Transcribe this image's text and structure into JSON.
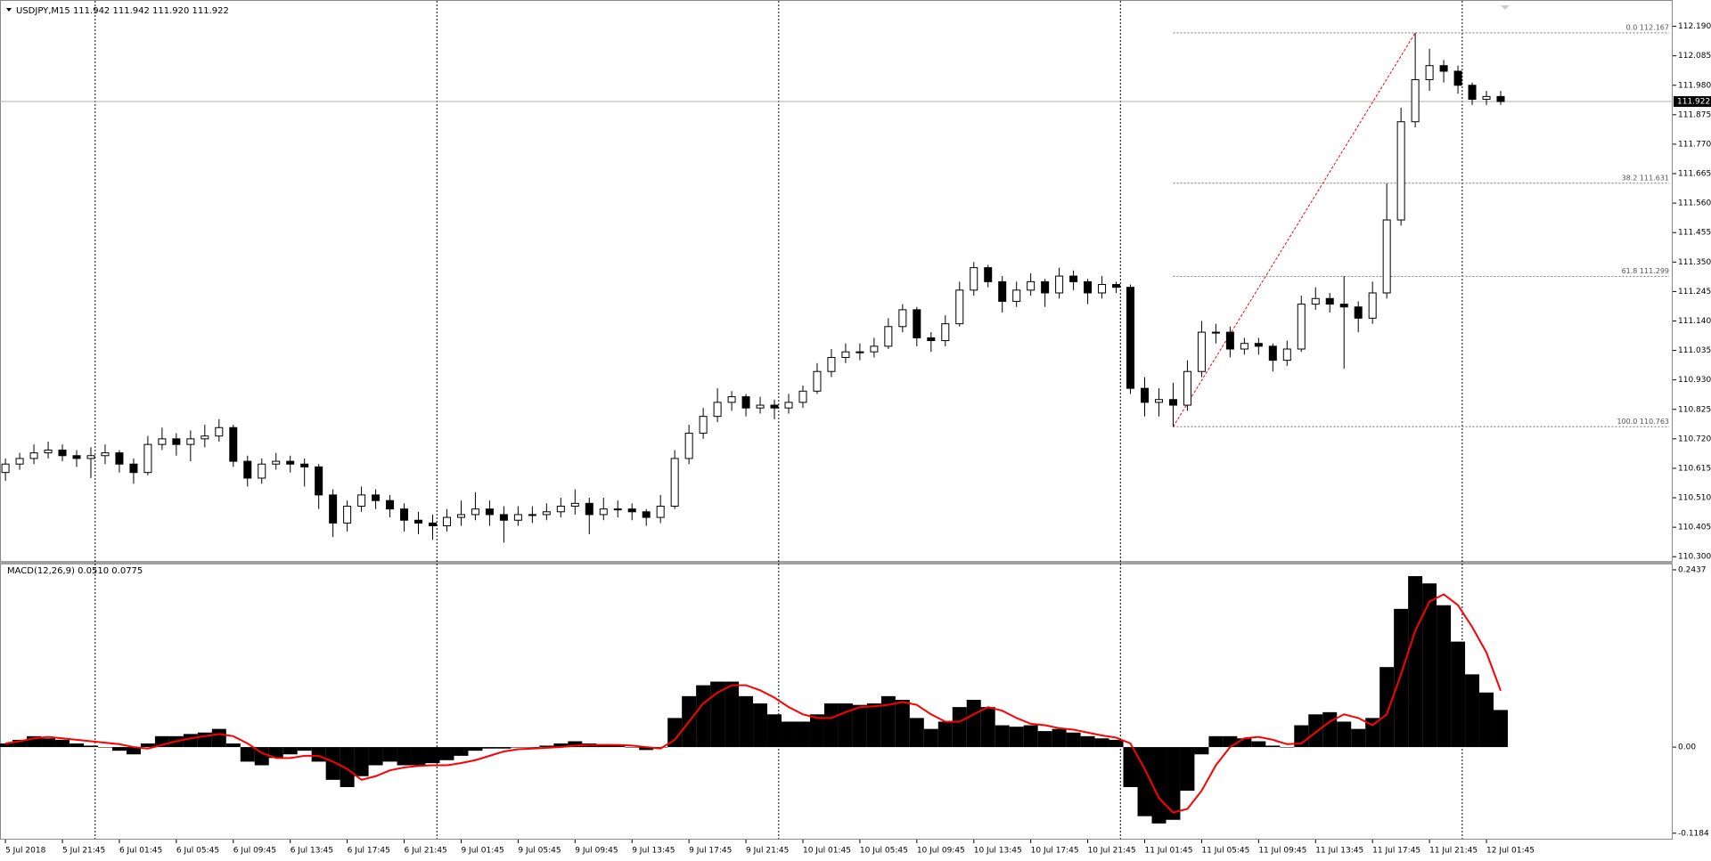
{
  "chart_data": {
    "type": "candlestick",
    "title": "USDJPY,M15  111.942 111.942 111.920 111.922",
    "ylim": [
      110.288,
      112.268
    ],
    "yticks": [
      {
        "value": 112.19,
        "label": "112.190"
      },
      112.085,
      {
        "value": 111.98,
        "label": "111.980"
      },
      111.875,
      {
        "value": 111.77,
        "label": "111.770"
      },
      111.665,
      {
        "value": 111.56,
        "label": "111.560"
      },
      111.455,
      {
        "value": 111.35,
        "label": "111.350"
      },
      111.245,
      {
        "value": 111.14,
        "label": "111.140"
      },
      111.035,
      {
        "value": 110.93,
        "label": "110.930"
      },
      110.825,
      {
        "value": 110.72,
        "label": "110.720"
      },
      110.615,
      {
        "value": 110.51,
        "label": "110.510"
      },
      110.405,
      {
        "value": 110.3,
        "label": "110.300"
      }
    ],
    "bid": 111.922,
    "x_labels": [
      "5 Jul 2018",
      "5 Jul 21:45",
      "6 Jul 01:45",
      "6 Jul 05:45",
      "6 Jul 09:45",
      "6 Jul 13:45",
      "6 Jul 17:45",
      "6 Jul 21:45",
      "9 Jul 01:45",
      "9 Jul 05:45",
      "9 Jul 09:45",
      "9 Jul 13:45",
      "9 Jul 17:45",
      "9 Jul 21:45",
      "10 Jul 01:45",
      "10 Jul 05:45",
      "10 Jul 09:45",
      "10 Jul 13:45",
      "10 Jul 17:45",
      "10 Jul 21:45",
      "11 Jul 01:45",
      "11 Jul 05:45",
      "11 Jul 09:45",
      "11 Jul 13:45",
      "11 Jul 17:45",
      "11 Jul 21:45",
      "12 Jul 01:45"
    ],
    "fib_levels": [
      {
        "label": "0.0 112.167",
        "value": 112.167
      },
      {
        "label": "38.2 111.631",
        "value": 111.631
      },
      {
        "label": "61.8 111.299",
        "value": 111.299
      },
      {
        "label": "100.0 110.763",
        "value": 110.763
      }
    ],
    "candles": [
      [
        110.6,
        110.65,
        110.57,
        110.63
      ],
      [
        110.63,
        110.67,
        110.61,
        110.65
      ],
      [
        110.65,
        110.7,
        110.63,
        110.67
      ],
      [
        110.67,
        110.71,
        110.65,
        110.68
      ],
      [
        110.68,
        110.7,
        110.64,
        110.66
      ],
      [
        110.66,
        110.68,
        110.62,
        110.65
      ],
      [
        110.65,
        110.69,
        110.58,
        110.66
      ],
      [
        110.66,
        110.7,
        110.63,
        110.67
      ],
      [
        110.67,
        110.68,
        110.6,
        110.63
      ],
      [
        110.63,
        110.65,
        110.56,
        110.6
      ],
      [
        110.6,
        110.73,
        110.59,
        110.7
      ],
      [
        110.7,
        110.76,
        110.68,
        110.72
      ],
      [
        110.72,
        110.74,
        110.66,
        110.7
      ],
      [
        110.7,
        110.75,
        110.64,
        110.72
      ],
      [
        110.72,
        110.77,
        110.69,
        110.73
      ],
      [
        110.73,
        110.79,
        110.71,
        110.76
      ],
      [
        110.76,
        110.77,
        110.62,
        110.64
      ],
      [
        110.64,
        110.66,
        110.55,
        110.58
      ],
      [
        110.58,
        110.65,
        110.56,
        110.63
      ],
      [
        110.63,
        110.67,
        110.61,
        110.64
      ],
      [
        110.64,
        110.66,
        110.6,
        110.63
      ],
      [
        110.63,
        110.65,
        110.55,
        110.62
      ],
      [
        110.62,
        110.63,
        110.47,
        110.52
      ],
      [
        110.52,
        110.54,
        110.37,
        110.42
      ],
      [
        110.42,
        110.5,
        110.39,
        110.48
      ],
      [
        110.48,
        110.55,
        110.46,
        110.52
      ],
      [
        110.52,
        110.54,
        110.47,
        110.5
      ],
      [
        110.5,
        110.52,
        110.44,
        110.47
      ],
      [
        110.47,
        110.49,
        110.39,
        110.43
      ],
      [
        110.43,
        110.46,
        110.38,
        110.42
      ],
      [
        110.42,
        110.45,
        110.36,
        110.41
      ],
      [
        110.41,
        110.47,
        110.39,
        110.44
      ],
      [
        110.44,
        110.5,
        110.41,
        110.45
      ],
      [
        110.45,
        110.53,
        110.43,
        110.47
      ],
      [
        110.47,
        110.5,
        110.41,
        110.45
      ],
      [
        110.45,
        110.48,
        110.35,
        110.43
      ],
      [
        110.43,
        110.48,
        110.41,
        110.45
      ],
      [
        110.45,
        110.48,
        110.42,
        110.45
      ],
      [
        110.45,
        110.49,
        110.43,
        110.46
      ],
      [
        110.46,
        110.51,
        110.44,
        110.48
      ],
      [
        110.48,
        110.54,
        110.45,
        110.49
      ],
      [
        110.49,
        110.51,
        110.38,
        110.45
      ],
      [
        110.45,
        110.51,
        110.43,
        110.47
      ],
      [
        110.47,
        110.5,
        110.44,
        110.47
      ],
      [
        110.47,
        110.49,
        110.43,
        110.46
      ],
      [
        110.46,
        110.47,
        110.41,
        110.44
      ],
      [
        110.44,
        110.52,
        110.42,
        110.48
      ],
      [
        110.48,
        110.68,
        110.47,
        110.65
      ],
      [
        110.65,
        110.77,
        110.63,
        110.74
      ],
      [
        110.74,
        110.83,
        110.72,
        110.8
      ],
      [
        110.8,
        110.9,
        110.78,
        110.85
      ],
      [
        110.85,
        110.89,
        110.82,
        110.87
      ],
      [
        110.87,
        110.88,
        110.8,
        110.83
      ],
      [
        110.83,
        110.87,
        110.81,
        110.84
      ],
      [
        110.84,
        110.86,
        110.79,
        110.83
      ],
      [
        110.83,
        110.88,
        110.81,
        110.85
      ],
      [
        110.85,
        110.91,
        110.83,
        110.89
      ],
      [
        110.89,
        110.99,
        110.88,
        110.96
      ],
      [
        110.96,
        111.04,
        110.94,
        111.01
      ],
      [
        111.01,
        111.06,
        110.99,
        111.03
      ],
      [
        111.03,
        111.06,
        111.0,
        111.03
      ],
      [
        111.03,
        111.08,
        111.01,
        111.05
      ],
      [
        111.05,
        111.15,
        111.04,
        111.12
      ],
      [
        111.12,
        111.2,
        111.1,
        111.18
      ],
      [
        111.18,
        111.19,
        111.05,
        111.08
      ],
      [
        111.08,
        111.1,
        111.03,
        111.07
      ],
      [
        111.07,
        111.16,
        111.05,
        111.13
      ],
      [
        111.13,
        111.28,
        111.12,
        111.25
      ],
      [
        111.25,
        111.35,
        111.23,
        111.33
      ],
      [
        111.33,
        111.34,
        111.26,
        111.28
      ],
      [
        111.28,
        111.3,
        111.17,
        111.21
      ],
      [
        111.21,
        111.28,
        111.19,
        111.25
      ],
      [
        111.25,
        111.31,
        111.23,
        111.28
      ],
      [
        111.28,
        111.29,
        111.19,
        111.24
      ],
      [
        111.24,
        111.33,
        111.22,
        111.3
      ],
      [
        111.3,
        111.32,
        111.25,
        111.28
      ],
      [
        111.28,
        111.29,
        111.2,
        111.24
      ],
      [
        111.24,
        111.3,
        111.22,
        111.27
      ],
      [
        111.27,
        111.28,
        111.24,
        111.26
      ],
      [
        111.26,
        111.27,
        110.88,
        110.9
      ],
      [
        110.9,
        110.94,
        110.8,
        110.85
      ],
      [
        110.85,
        110.9,
        110.8,
        110.86
      ],
      [
        110.86,
        110.92,
        110.763,
        110.84
      ],
      [
        110.84,
        111.0,
        110.82,
        110.96
      ],
      [
        110.96,
        111.14,
        110.94,
        111.1
      ],
      [
        111.1,
        111.13,
        111.06,
        111.1
      ],
      [
        111.1,
        111.12,
        111.01,
        111.04
      ],
      [
        111.04,
        111.08,
        111.02,
        111.06
      ],
      [
        111.06,
        111.08,
        111.02,
        111.05
      ],
      [
        111.05,
        111.06,
        110.96,
        111.0
      ],
      [
        111.0,
        111.07,
        110.98,
        111.04
      ],
      [
        111.04,
        111.23,
        111.03,
        111.2
      ],
      [
        111.2,
        111.26,
        111.18,
        111.22
      ],
      [
        111.22,
        111.24,
        111.17,
        111.2
      ],
      [
        111.2,
        111.3,
        110.97,
        111.19
      ],
      [
        111.19,
        111.21,
        111.1,
        111.15
      ],
      [
        111.15,
        111.28,
        111.13,
        111.24
      ],
      [
        111.24,
        111.63,
        111.22,
        111.5
      ],
      [
        111.5,
        111.9,
        111.48,
        111.85
      ],
      [
        111.85,
        112.167,
        111.83,
        112.0
      ],
      [
        112.0,
        112.11,
        111.96,
        112.05
      ],
      [
        112.05,
        112.07,
        111.99,
        112.03
      ],
      [
        112.03,
        112.05,
        111.95,
        111.98
      ],
      [
        111.98,
        111.99,
        111.91,
        111.93
      ],
      [
        111.93,
        111.96,
        111.91,
        111.94
      ],
      [
        111.94,
        111.96,
        111.91,
        111.922
      ]
    ],
    "macd": {
      "title": "MACD(12,26,9) 0.0510 0.0775",
      "ylim": [
        -0.126,
        0.251
      ],
      "yticks": [
        0.2437,
        {
          "value": 0,
          "label": "0.00"
        },
        -0.1184
      ],
      "color": "#ff0000",
      "histogram": [
        0.005,
        0.01,
        0.015,
        0.012,
        0.01,
        0.005,
        0.002,
        0.0,
        -0.005,
        -0.01,
        0.005,
        0.015,
        0.015,
        0.018,
        0.02,
        0.025,
        0.005,
        -0.02,
        -0.025,
        -0.015,
        -0.01,
        -0.005,
        -0.02,
        -0.045,
        -0.055,
        -0.04,
        -0.025,
        -0.02,
        -0.025,
        -0.025,
        -0.022,
        -0.018,
        -0.012,
        -0.005,
        -0.002,
        -0.002,
        0.0,
        0.0,
        0.002,
        0.005,
        0.008,
        0.005,
        0.004,
        0.003,
        0.0,
        -0.004,
        0.0,
        0.04,
        0.07,
        0.085,
        0.09,
        0.09,
        0.07,
        0.06,
        0.045,
        0.035,
        0.035,
        0.045,
        0.06,
        0.06,
        0.058,
        0.06,
        0.07,
        0.065,
        0.04,
        0.025,
        0.035,
        0.055,
        0.065,
        0.055,
        0.03,
        0.028,
        0.03,
        0.022,
        0.025,
        0.02,
        0.015,
        0.012,
        0.01,
        -0.055,
        -0.095,
        -0.105,
        -0.1,
        -0.06,
        -0.01,
        0.015,
        0.015,
        0.012,
        0.008,
        0.002,
        0.0,
        0.03,
        0.045,
        0.048,
        0.035,
        0.025,
        0.04,
        0.11,
        0.19,
        0.235,
        0.225,
        0.195,
        0.145,
        0.1,
        0.075,
        0.051
      ],
      "signal": [
        0.005,
        0.008,
        0.012,
        0.014,
        0.012,
        0.01,
        0.008,
        0.006,
        0.004,
        0.0,
        -0.002,
        0.003,
        0.008,
        0.012,
        0.015,
        0.018,
        0.015,
        0.005,
        -0.008,
        -0.015,
        -0.015,
        -0.012,
        -0.012,
        -0.02,
        -0.03,
        -0.045,
        -0.04,
        -0.032,
        -0.028,
        -0.026,
        -0.025,
        -0.025,
        -0.022,
        -0.018,
        -0.012,
        -0.006,
        -0.003,
        -0.002,
        -0.001,
        0.0,
        0.002,
        0.003,
        0.003,
        0.003,
        0.002,
        0.0,
        -0.002,
        0.01,
        0.035,
        0.06,
        0.075,
        0.085,
        0.085,
        0.078,
        0.068,
        0.055,
        0.045,
        0.04,
        0.04,
        0.048,
        0.055,
        0.056,
        0.058,
        0.062,
        0.058,
        0.045,
        0.035,
        0.035,
        0.045,
        0.055,
        0.05,
        0.04,
        0.032,
        0.03,
        0.026,
        0.024,
        0.02,
        0.016,
        0.013,
        0.005,
        -0.03,
        -0.07,
        -0.09,
        -0.085,
        -0.06,
        -0.025,
        0.0,
        0.012,
        0.014,
        0.01,
        0.004,
        0.005,
        0.02,
        0.035,
        0.045,
        0.04,
        0.03,
        0.045,
        0.1,
        0.16,
        0.2,
        0.21,
        0.195,
        0.165,
        0.13,
        0.0775
      ]
    }
  }
}
